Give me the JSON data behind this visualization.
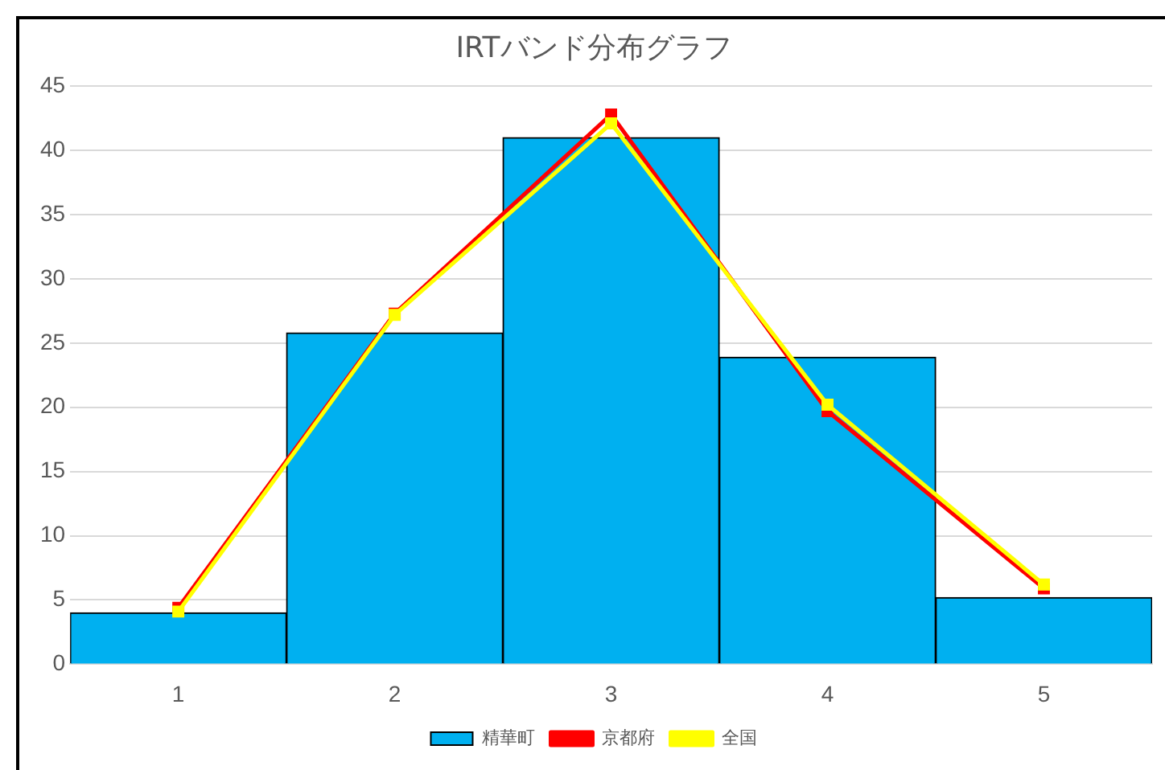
{
  "chart_data": {
    "type": "bar",
    "title": "IRTバンド分布グラフ",
    "categories": [
      "1",
      "2",
      "3",
      "4",
      "5"
    ],
    "series": [
      {
        "name": "精華町",
        "color": "#00b0f0",
        "values": [
          4.0,
          25.8,
          41.0,
          23.9,
          5.2
        ]
      },
      {
        "name": "京都府",
        "type": "line",
        "color": "#ff0000",
        "values": [
          4.4,
          27.3,
          42.8,
          19.7,
          5.9
        ]
      },
      {
        "name": "全国",
        "type": "line",
        "color": "#ffff00",
        "values": [
          4.1,
          27.2,
          42.1,
          20.2,
          6.2
        ]
      }
    ],
    "ylim": [
      0,
      45
    ],
    "yticks": [
      0,
      5,
      10,
      15,
      20,
      25,
      30,
      35,
      40,
      45
    ],
    "grid": "y",
    "legend": "bottom",
    "marker": "square",
    "line_style": "solid"
  }
}
